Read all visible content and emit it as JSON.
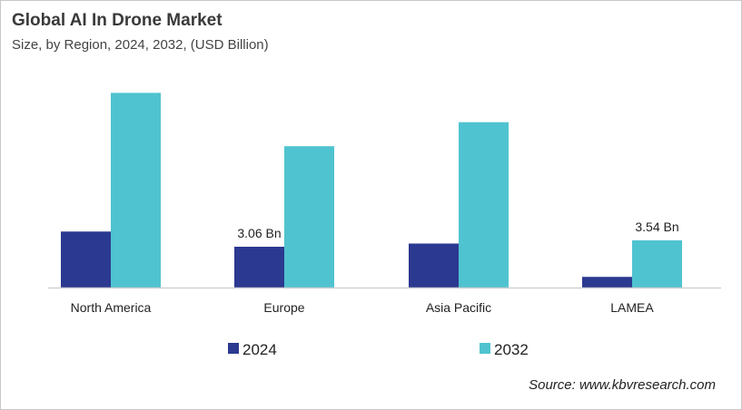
{
  "title": "Global AI In Drone Market",
  "subtitle": "Size, by Region, 2024, 2032, (USD Billion)",
  "source": "Source: www.kbvresearch.com",
  "chart_data": {
    "type": "bar",
    "title": "Global AI In Drone Market",
    "subtitle": "Size, by Region, 2024, 2032, (USD Billion)",
    "categories": [
      "North America",
      "Europe",
      "Asia Pacific",
      "LAMEA"
    ],
    "series": [
      {
        "name": "2024",
        "color": "#2b3990",
        "values": [
          4.2,
          3.06,
          3.3,
          0.8
        ],
        "labels": [
          "",
          "3.06 Bn",
          "",
          ""
        ]
      },
      {
        "name": "2032",
        "color": "#4fc3cf",
        "values": [
          14.6,
          10.6,
          12.4,
          3.54
        ],
        "labels": [
          "",
          "",
          "",
          "3.54 Bn"
        ]
      }
    ],
    "ylim": [
      0,
      15.85
    ],
    "grid": false,
    "legend": "bottom",
    "xlabel": "",
    "ylabel": ""
  }
}
